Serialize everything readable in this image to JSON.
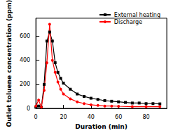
{
  "chart_data": {
    "type": "line",
    "x_label": "Duration (min)",
    "y_label": "Outlet toluene concentration (ppm)",
    "xlim": [
      0,
      95
    ],
    "xticks": [
      0,
      20,
      40,
      60,
      80
    ],
    "ylim": [
      0,
      750
    ],
    "yticks": [
      0,
      200,
      400,
      600
    ],
    "grid": false,
    "legend": "top-right",
    "series": [
      {
        "name": "External heating",
        "color": "#000000",
        "marker": "square",
        "x": [
          0,
          2,
          4,
          6,
          8,
          10,
          12,
          14,
          16,
          18,
          20,
          25,
          30,
          35,
          40,
          45,
          50,
          55,
          60,
          65,
          70,
          75,
          80,
          85,
          90
        ],
        "values": [
          10,
          20,
          10,
          200,
          560,
          635,
          560,
          380,
          300,
          250,
          210,
          160,
          120,
          100,
          85,
          75,
          65,
          60,
          55,
          50,
          45,
          45,
          40,
          40,
          38
        ]
      },
      {
        "name": "Discharge",
        "color": "#ff0000",
        "marker": "circle",
        "x": [
          0,
          2,
          4,
          6,
          8,
          10,
          12,
          14,
          16,
          18,
          20,
          25,
          30,
          35,
          40,
          45,
          50,
          55,
          60,
          70,
          80,
          90
        ],
        "values": [
          20,
          70,
          10,
          150,
          380,
          700,
          400,
          300,
          220,
          160,
          120,
          80,
          55,
          40,
          30,
          25,
          20,
          20,
          18,
          15,
          15,
          15
        ]
      }
    ]
  }
}
